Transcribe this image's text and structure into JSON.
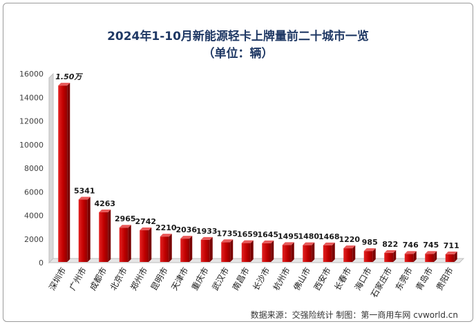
{
  "chart_data": {
    "type": "bar",
    "title": "2024年1-10月新能源轻卡上牌量前二十城市一览",
    "subtitle": "（单位：辆）",
    "categories": [
      "深圳市",
      "广州市",
      "成都市",
      "北京市",
      "郑州市",
      "昆明市",
      "天津市",
      "重庆市",
      "武汉市",
      "南昌市",
      "长沙市",
      "杭州市",
      "佛山市",
      "西安市",
      "长春市",
      "海口市",
      "石家庄市",
      "东莞市",
      "青岛市",
      "贵阳市"
    ],
    "values": [
      15000,
      5341,
      4263,
      2965,
      2742,
      2210,
      2036,
      1933,
      1735,
      1659,
      1645,
      1495,
      1480,
      1468,
      1220,
      985,
      822,
      746,
      745,
      711
    ],
    "data_labels": [
      "1.50万",
      "5341",
      "4263",
      "2965",
      "2742",
      "2210",
      "2036",
      "1933",
      "1735",
      "1659",
      "1645",
      "1495",
      "1480",
      "1468",
      "1220",
      "985",
      "822",
      "746",
      "745",
      "711"
    ],
    "yticks": [
      "0",
      "2000",
      "4000",
      "6000",
      "8000",
      "10000",
      "12000",
      "14000",
      "16000"
    ],
    "ylim": [
      0,
      16000
    ],
    "bar_color": "#c00000",
    "grid": false,
    "legend": "none",
    "source": "数据来源：交强险统计 制图：第一商用车网 cvworld.cn"
  }
}
